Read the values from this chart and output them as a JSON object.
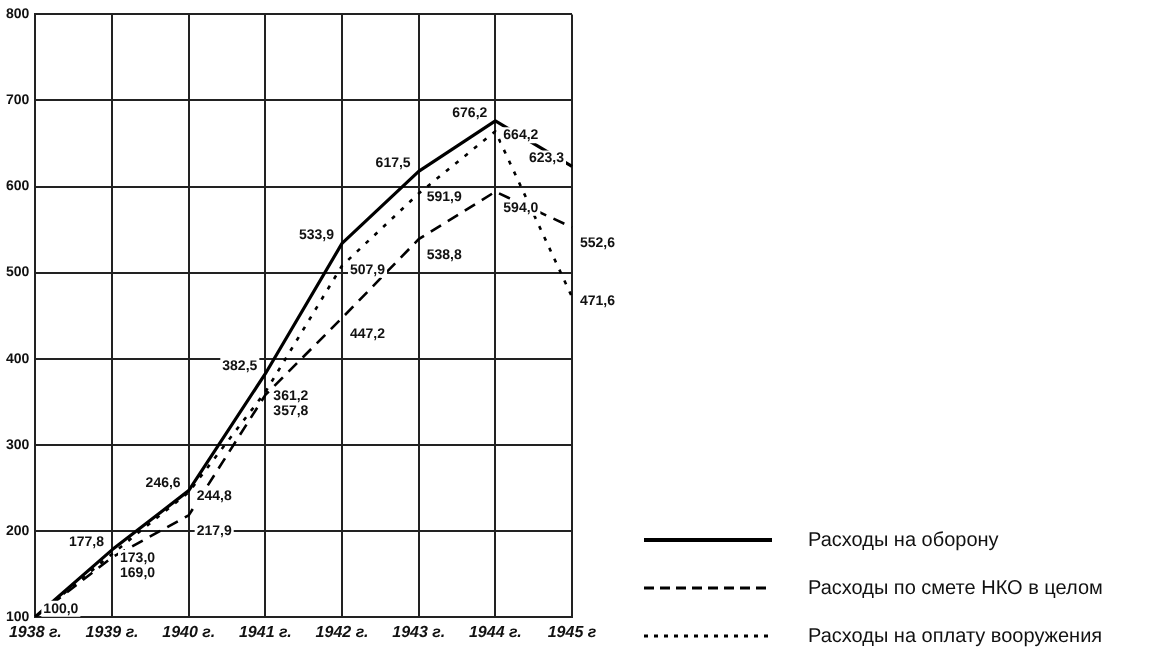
{
  "chart_data": {
    "type": "line",
    "categories": [
      "1938 г.",
      "1939 г.",
      "1940 г.",
      "1941 г.",
      "1942 г.",
      "1943 г.",
      "1944 г.",
      "1945 г"
    ],
    "series": [
      {
        "name": "Расходы на оборону",
        "color": "#000000",
        "line_style": "solid",
        "values": [
          100.0,
          177.8,
          246.6,
          382.5,
          533.9,
          617.5,
          676.2,
          623.3
        ],
        "value_labels": [
          "100,0",
          "177,8",
          "246,6",
          "382,5",
          "533,9",
          "617,5",
          "676,2",
          "623,3"
        ]
      },
      {
        "name": "Расходы по смете НКО в целом",
        "color": "#000000",
        "line_style": "dashed",
        "values": [
          100.0,
          169.0,
          217.9,
          357.8,
          447.2,
          538.8,
          594.0,
          552.6
        ],
        "value_labels": [
          null,
          "169,0",
          "217,9",
          "357,8",
          "447,2",
          "538,8",
          "594,0",
          "552,6"
        ]
      },
      {
        "name": "Расходы на оплату вооружения",
        "color": "#000000",
        "line_style": "dotted",
        "values": [
          100.0,
          173.0,
          244.8,
          361.2,
          507.9,
          591.9,
          664.2,
          471.6
        ],
        "value_labels": [
          null,
          "173,0",
          "244,8",
          "361,2",
          "507,9",
          "591,9",
          "664,2",
          "471,6"
        ]
      }
    ],
    "ylim": [
      100,
      800
    ],
    "yticks": [
      100,
      200,
      300,
      400,
      500,
      600,
      700,
      800
    ],
    "grid": true,
    "legend": "bottom right",
    "marker": "none"
  }
}
